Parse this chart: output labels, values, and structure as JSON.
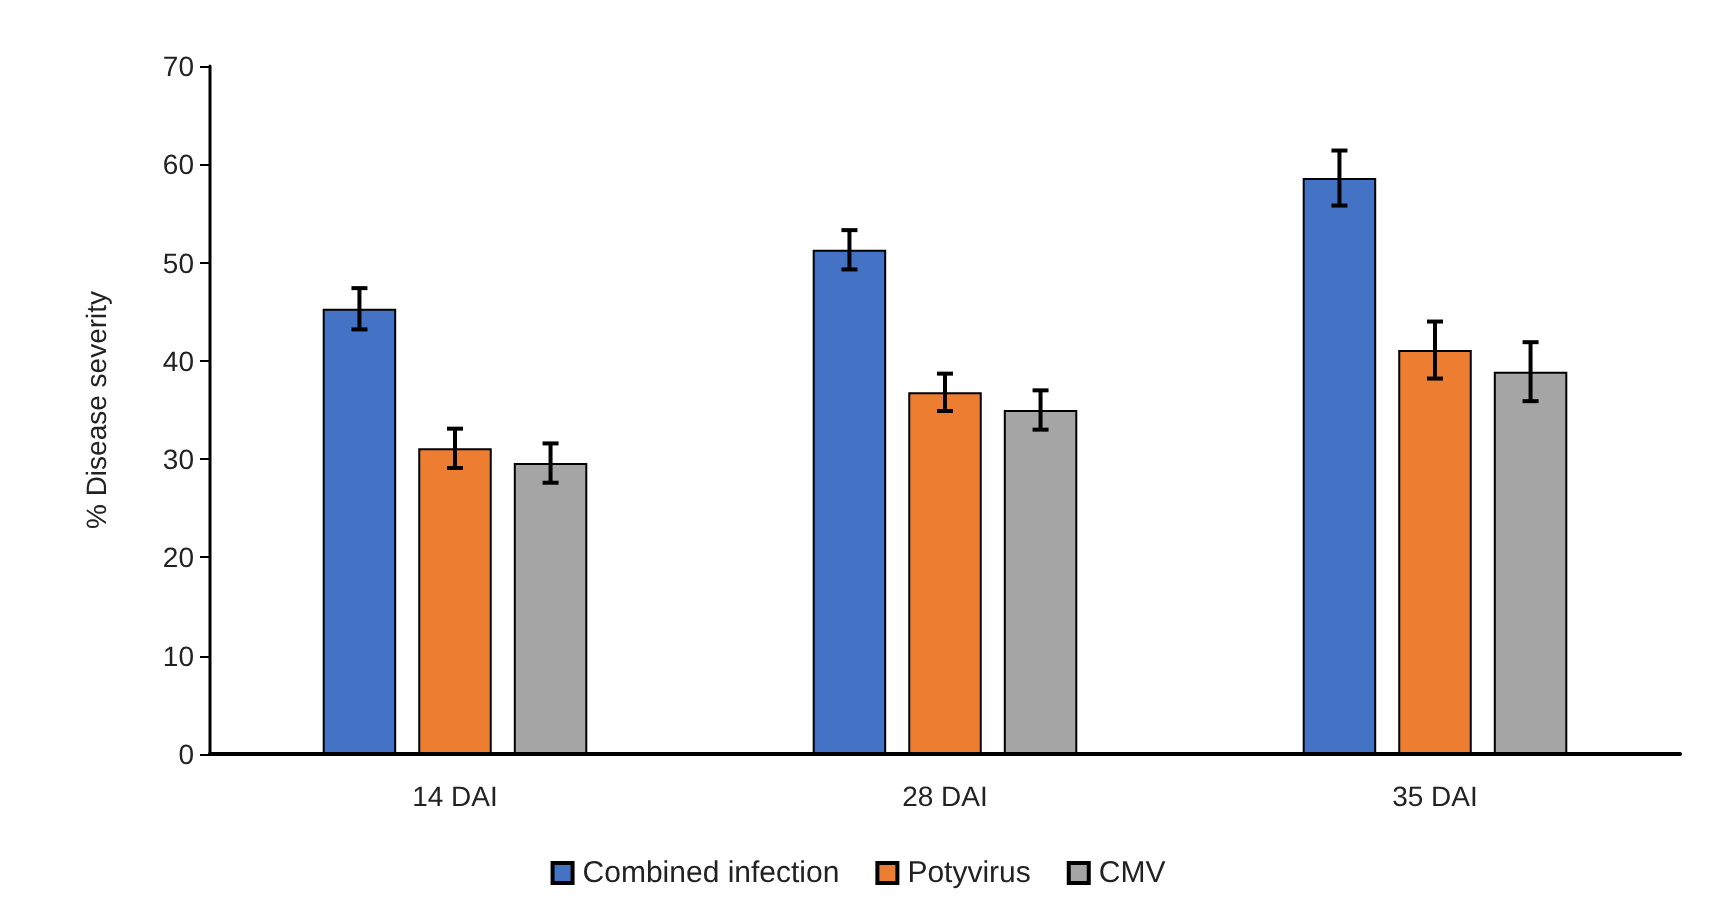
{
  "chart_data": {
    "type": "bar",
    "ylabel": "% Disease severity",
    "categories": [
      "14 DAI",
      "28 DAI",
      "35 DAI"
    ],
    "series": [
      {
        "name": "Combined infection",
        "color": "#4472c4",
        "values": [
          45.3,
          51.3,
          58.6
        ],
        "errors": [
          2.1,
          2.0,
          2.8
        ]
      },
      {
        "name": "Potyvirus",
        "color": "#ed7d31",
        "values": [
          31.1,
          36.8,
          41.1
        ],
        "errors": [
          2.0,
          1.9,
          2.9
        ]
      },
      {
        "name": "CMV",
        "color": "#a5a5a5",
        "values": [
          29.6,
          35.0,
          38.9
        ],
        "errors": [
          2.0,
          2.0,
          3.0
        ]
      }
    ],
    "ylim": [
      0,
      70
    ],
    "yticks": [
      0,
      10,
      20,
      30,
      40,
      50,
      60,
      70
    ],
    "grid": false,
    "legend": "bottom"
  }
}
